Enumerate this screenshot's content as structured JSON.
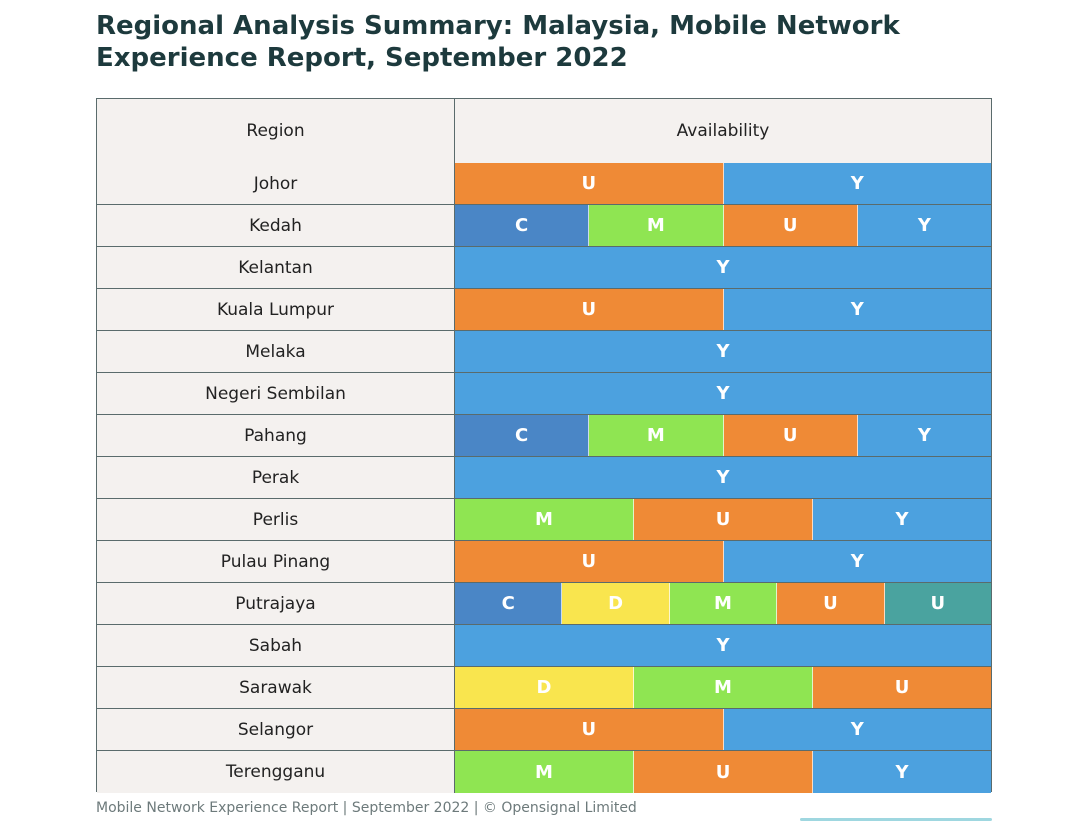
{
  "title": "Regional Analysis Summary: Malaysia, Mobile Network Experience Report, September 2022",
  "table": {
    "headers": {
      "region": "Region",
      "availability": "Availability"
    },
    "legend_colors": {
      "C": "#4a86c6",
      "D": "#f9e54e",
      "M": "#8fe552",
      "U": "#ef8a36",
      "Y": "#4ca1df",
      "U2": "#4aa39f"
    },
    "rows": [
      {
        "region": "Johor",
        "segments": [
          {
            "label": "U",
            "key": "U"
          },
          {
            "label": "Y",
            "key": "Y"
          }
        ]
      },
      {
        "region": "Kedah",
        "segments": [
          {
            "label": "C",
            "key": "C"
          },
          {
            "label": "M",
            "key": "M"
          },
          {
            "label": "U",
            "key": "U"
          },
          {
            "label": "Y",
            "key": "Y"
          }
        ]
      },
      {
        "region": "Kelantan",
        "segments": [
          {
            "label": "Y",
            "key": "Y"
          }
        ]
      },
      {
        "region": "Kuala Lumpur",
        "segments": [
          {
            "label": "U",
            "key": "U"
          },
          {
            "label": "Y",
            "key": "Y"
          }
        ]
      },
      {
        "region": "Melaka",
        "segments": [
          {
            "label": "Y",
            "key": "Y"
          }
        ]
      },
      {
        "region": "Negeri Sembilan",
        "segments": [
          {
            "label": "Y",
            "key": "Y"
          }
        ]
      },
      {
        "region": "Pahang",
        "segments": [
          {
            "label": "C",
            "key": "C"
          },
          {
            "label": "M",
            "key": "M"
          },
          {
            "label": "U",
            "key": "U"
          },
          {
            "label": "Y",
            "key": "Y"
          }
        ]
      },
      {
        "region": "Perak",
        "segments": [
          {
            "label": "Y",
            "key": "Y"
          }
        ]
      },
      {
        "region": "Perlis",
        "segments": [
          {
            "label": "M",
            "key": "M"
          },
          {
            "label": "U",
            "key": "U"
          },
          {
            "label": "Y",
            "key": "Y"
          }
        ]
      },
      {
        "region": "Pulau Pinang",
        "segments": [
          {
            "label": "U",
            "key": "U"
          },
          {
            "label": "Y",
            "key": "Y"
          }
        ]
      },
      {
        "region": "Putrajaya",
        "segments": [
          {
            "label": "C",
            "key": "C"
          },
          {
            "label": "D",
            "key": "D"
          },
          {
            "label": "M",
            "key": "M"
          },
          {
            "label": "U",
            "key": "U"
          },
          {
            "label": "U",
            "key": "U2"
          }
        ]
      },
      {
        "region": "Sabah",
        "segments": [
          {
            "label": "Y",
            "key": "Y"
          }
        ]
      },
      {
        "region": "Sarawak",
        "segments": [
          {
            "label": "D",
            "key": "D"
          },
          {
            "label": "M",
            "key": "M"
          },
          {
            "label": "U",
            "key": "U"
          }
        ]
      },
      {
        "region": "Selangor",
        "segments": [
          {
            "label": "U",
            "key": "U"
          },
          {
            "label": "Y",
            "key": "Y"
          }
        ]
      },
      {
        "region": "Terengganu",
        "segments": [
          {
            "label": "M",
            "key": "M"
          },
          {
            "label": "U",
            "key": "U"
          },
          {
            "label": "Y",
            "key": "Y"
          }
        ]
      }
    ]
  },
  "footer": "Mobile Network Experience Report | September 2022 | © Opensignal Limited"
}
